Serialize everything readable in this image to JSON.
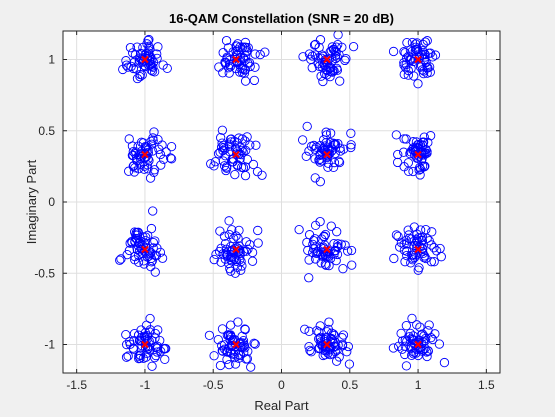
{
  "chart_data": {
    "type": "scatter",
    "title": "16-QAM Constellation (SNR = 20 dB)",
    "xlabel": "Real Part",
    "ylabel": "Imaginary Part",
    "xlim": [
      -1.6,
      1.6
    ],
    "ylim": [
      -1.2,
      1.2
    ],
    "xticks": [
      -1.5,
      -1,
      -0.5,
      0,
      0.5,
      1,
      1.5
    ],
    "xtick_labels": [
      "-1.5",
      "-1",
      "-0.5",
      "0",
      "0.5",
      "1",
      "1.5"
    ],
    "yticks": [
      -1,
      -0.5,
      0,
      0.5,
      1
    ],
    "ytick_labels": [
      "-1",
      "-0.5",
      "0",
      "0.5",
      "1"
    ],
    "grid": true,
    "levels": [
      -1,
      -0.333,
      0.333,
      1
    ],
    "noise_std": 0.07,
    "points_per_symbol": 60,
    "colors": {
      "received": "#0000ff",
      "ideal": "#ff0000",
      "grid": "#dfdfdf",
      "axes": "#262626",
      "background": "#ffffff",
      "figure": "#f0f0f0"
    }
  }
}
